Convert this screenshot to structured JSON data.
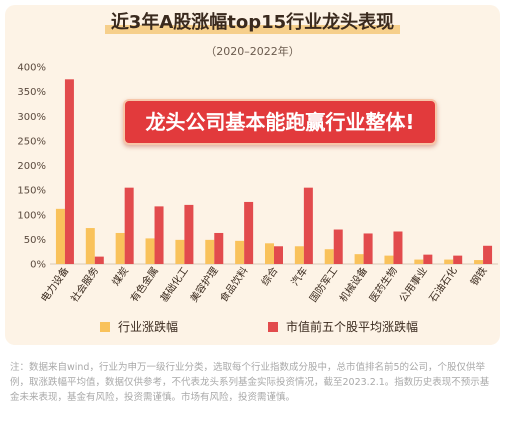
{
  "title": "近3年A股涨幅top15行业龙头表现",
  "subtitle": "（2020–2022年）",
  "banner": "龙头公司基本能跑赢行业整体!",
  "note": "注：数据来自wind，行业为申万一级行业分类，选取每个行业指数成分股中，总市值排名前5的公司，个股仅供举例，取涨跌幅平均值，数据仅供参考，不代表龙头系列基金实际投资情况，截至2023.2.1。指数历史表现不预示基金未来表现，基金有风险，投资需谨慎。市场有风险，投资需谨慎。",
  "colors": {
    "industry": "#f9c25b",
    "leaders": "#e24b4d",
    "background": "#fdf3e6"
  },
  "chart_data": {
    "type": "bar",
    "categories": [
      "电力设备",
      "社会服务",
      "煤炭",
      "有色金属",
      "基础化工",
      "美容护理",
      "食品饮料",
      "综合",
      "汽车",
      "国防军工",
      "机械设备",
      "医药生物",
      "公用事业",
      "石油石化",
      "钢铁"
    ],
    "series": [
      {
        "name": "行业涨跌幅",
        "values": [
          112,
          73,
          63,
          52,
          49,
          49,
          47,
          42,
          36,
          30,
          20,
          17,
          9,
          9,
          8
        ]
      },
      {
        "name": "市值前五个股平均涨跌幅",
        "values": [
          375,
          15,
          155,
          117,
          120,
          63,
          126,
          36,
          155,
          70,
          62,
          66,
          19,
          17,
          37
        ]
      }
    ],
    "yticks": [
      "0%",
      "50%",
      "100%",
      "150%",
      "200%",
      "250%",
      "300%",
      "350%",
      "400%"
    ],
    "ylim": [
      0,
      400
    ],
    "ylabel": "",
    "xlabel": "",
    "grid": false,
    "legend_position": "bottom"
  }
}
